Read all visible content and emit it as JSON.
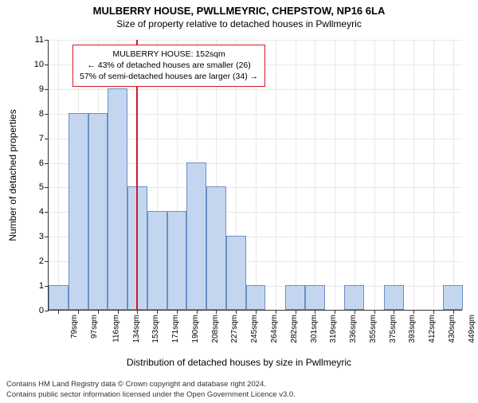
{
  "title": "MULBERRY HOUSE, PWLLMEYRIC, CHEPSTOW, NP16 6LA",
  "subtitle": "Size of property relative to detached houses in Pwllmeyric",
  "y_axis": {
    "label": "Number of detached properties",
    "min": 0,
    "max": 11,
    "tick_step": 1,
    "label_fontsize": 12,
    "tick_fontsize": 11
  },
  "x_axis": {
    "label": "Distribution of detached houses by size in Pwllmeyric",
    "categories": [
      "79sqm",
      "97sqm",
      "116sqm",
      "134sqm",
      "153sqm",
      "171sqm",
      "190sqm",
      "208sqm",
      "227sqm",
      "245sqm",
      "264sqm",
      "282sqm",
      "301sqm",
      "319sqm",
      "336sqm",
      "355sqm",
      "375sqm",
      "393sqm",
      "412sqm",
      "430sqm",
      "449sqm"
    ],
    "label_fontsize": 12,
    "tick_fontsize": 10,
    "tick_rotation_deg": -90
  },
  "bars": {
    "values": [
      1,
      8,
      8,
      9,
      5,
      4,
      4,
      6,
      5,
      3,
      1,
      0,
      1,
      1,
      0,
      1,
      0,
      1,
      0,
      0,
      1
    ],
    "fill_color": "#c4d6ef",
    "border_color": "#6a8fc5",
    "bar_width_ratio": 1.0
  },
  "marker": {
    "x_value_sqm": 152,
    "color": "#d4172a",
    "line_width": 2
  },
  "annotation": {
    "line1": "MULBERRY HOUSE: 152sqm",
    "line2": "← 43% of detached houses are smaller (26)",
    "line3": "57% of semi-detached houses are larger (34) →",
    "border_color": "#d4172a",
    "background": "#ffffff",
    "fontsize": 10.5
  },
  "grid": {
    "color": "#e8e8e8"
  },
  "background_color": "#ffffff",
  "footer": {
    "line1": "Contains HM Land Registry data © Crown copyright and database right 2024.",
    "line2": "Contains public sector information licensed under the Open Government Licence v3.0."
  }
}
